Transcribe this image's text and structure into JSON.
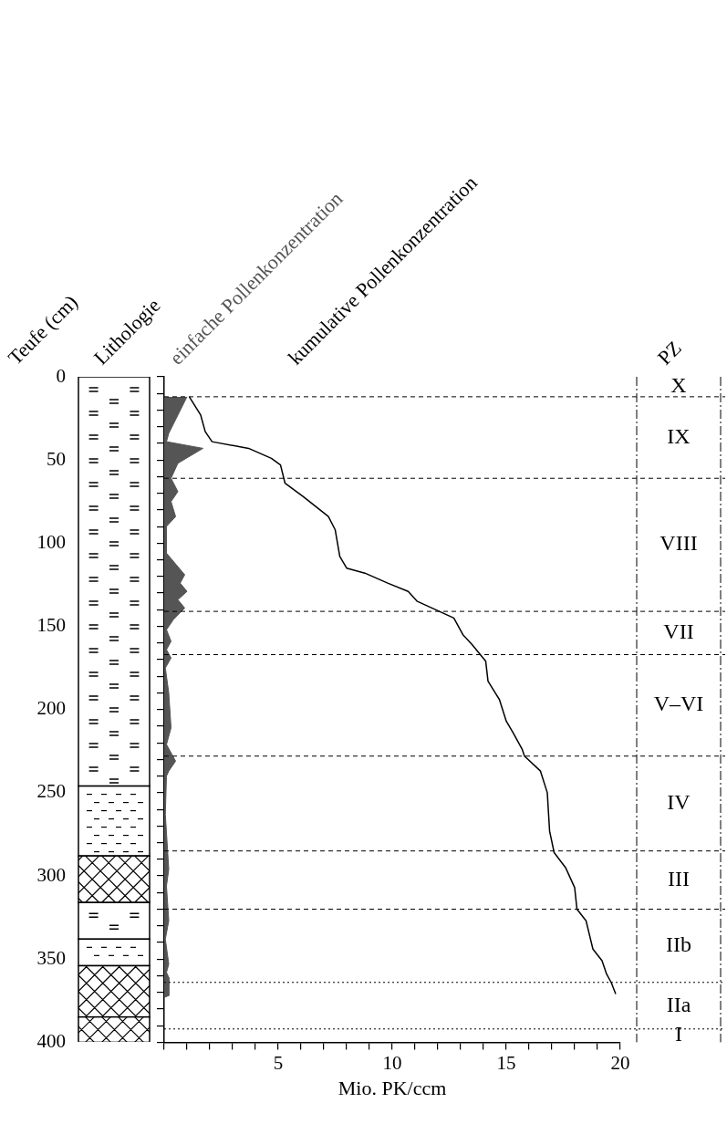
{
  "chart_data": {
    "type": "line",
    "ylabel": "Teufe (cm)",
    "xlabel": "Mio. PK/ccm",
    "annotations": [
      "Lithologie",
      "PZ",
      "X",
      "IX",
      "VIII",
      "VII",
      "V–VI",
      "IV",
      "III",
      "IIb",
      "IIa",
      "I"
    ],
    "xlim": [
      0,
      20
    ],
    "xticks": [
      {
        "value": 0,
        "label": null
      },
      {
        "value": 1,
        "label": null
      },
      {
        "value": 2,
        "label": null
      },
      {
        "value": 3,
        "label": null
      },
      {
        "value": 4,
        "label": null
      },
      5,
      {
        "value": 6,
        "label": null
      },
      {
        "value": 7,
        "label": null
      },
      {
        "value": 8,
        "label": null
      },
      {
        "value": 9,
        "label": null
      },
      10,
      {
        "value": 11,
        "label": null
      },
      {
        "value": 12,
        "label": null
      },
      {
        "value": 13,
        "label": null
      },
      {
        "value": 14,
        "label": null
      },
      15,
      {
        "value": 16,
        "label": null
      },
      {
        "value": 17,
        "label": null
      },
      {
        "value": 18,
        "label": null
      },
      {
        "value": 19,
        "label": null
      },
      20
    ],
    "ylim": [
      400,
      0
    ],
    "yticks": [
      0,
      {
        "value": 10,
        "label": null
      },
      {
        "value": 20,
        "label": null
      },
      {
        "value": 30,
        "label": null
      },
      {
        "value": 40,
        "label": null
      },
      50,
      {
        "value": 60,
        "label": null
      },
      {
        "value": 70,
        "label": null
      },
      {
        "value": 80,
        "label": null
      },
      {
        "value": 90,
        "label": null
      },
      100,
      {
        "value": 110,
        "label": null
      },
      {
        "value": 120,
        "label": null
      },
      {
        "value": 130,
        "label": null
      },
      {
        "value": 140,
        "label": null
      },
      150,
      {
        "value": 160,
        "label": null
      },
      {
        "value": 170,
        "label": null
      },
      {
        "value": 180,
        "label": null
      },
      {
        "value": 190,
        "label": null
      },
      200,
      {
        "value": 210,
        "label": null
      },
      {
        "value": 220,
        "label": null
      },
      {
        "value": 230,
        "label": null
      },
      {
        "value": 240,
        "label": null
      },
      250,
      {
        "value": 260,
        "label": null
      },
      {
        "value": 270,
        "label": null
      },
      {
        "value": 280,
        "label": null
      },
      {
        "value": 290,
        "label": null
      },
      300,
      {
        "value": 310,
        "label": null
      },
      {
        "value": 320,
        "label": null
      },
      {
        "value": 330,
        "label": null
      },
      {
        "value": 340,
        "label": null
      },
      350,
      {
        "value": 360,
        "label": null
      },
      {
        "value": 370,
        "label": null
      },
      {
        "value": 380,
        "label": null
      },
      {
        "value": 390,
        "label": null
      },
      400
    ],
    "grid": false,
    "legend": false,
    "marker": "none",
    "series": [
      {
        "name": "einfache Pollenkonzentration",
        "type": "area",
        "color": "#555555",
        "values": [
          12,
          23,
          34,
          39,
          43,
          52,
          61,
          69,
          75,
          84,
          90,
          106,
          119,
          124,
          129,
          134,
          139,
          146,
          152,
          159,
          164,
          169,
          175,
          190,
          211,
          221,
          231,
          237,
          240,
          263,
          296,
          306,
          327,
          338,
          353,
          358,
          361,
          372,
          373
        ],
        "x": [
          1.0,
          0.6,
          0.2,
          0.1,
          1.7,
          0.6,
          0.3,
          0.6,
          0.3,
          0.5,
          0.1,
          0.1,
          0.9,
          0.7,
          1.0,
          0.6,
          0.9,
          0.4,
          0.1,
          0.3,
          0.1,
          0.3,
          0.05,
          0.2,
          0.3,
          0.1,
          0.5,
          0.2,
          0.1,
          0.05,
          0.2,
          0.1,
          0.2,
          0.05,
          0.2,
          0.1,
          0.2,
          0.2,
          0
        ]
      },
      {
        "name": "kumulative Pollenkonzentration",
        "type": "line",
        "color": "#000000",
        "values": [
          12,
          23,
          33,
          39,
          43,
          49,
          53,
          64,
          72,
          84,
          92,
          108,
          115,
          118,
          124,
          129,
          135,
          145,
          155,
          161,
          171,
          183,
          194,
          207,
          214,
          224,
          228,
          237,
          250,
          273,
          286,
          295,
          307,
          320,
          327,
          344,
          351,
          359,
          364,
          371
        ],
        "x": [
          1.1,
          1.6,
          1.8,
          2.1,
          3.7,
          4.7,
          5.1,
          5.3,
          6.1,
          7.2,
          7.5,
          7.7,
          8.0,
          8.8,
          9.8,
          10.7,
          11.1,
          12.7,
          13.1,
          13.5,
          14.1,
          14.2,
          14.7,
          15.0,
          15.3,
          15.7,
          15.8,
          16.5,
          16.8,
          16.9,
          17.1,
          17.6,
          18.0,
          18.1,
          18.5,
          18.8,
          19.2,
          19.4,
          19.6,
          19.8
        ]
      }
    ],
    "ref_lines": [
      {
        "axis": "y",
        "value": 12,
        "line_style": "dashed"
      },
      {
        "axis": "y",
        "value": 61,
        "line_style": "dashed"
      },
      {
        "axis": "y",
        "value": 141,
        "line_style": "dashed"
      },
      {
        "axis": "y",
        "value": 167,
        "line_style": "dashed"
      },
      {
        "axis": "y",
        "value": 228,
        "line_style": "dashed"
      },
      {
        "axis": "y",
        "value": 285,
        "line_style": "dashed"
      },
      {
        "axis": "y",
        "value": 320,
        "line_style": "dashed"
      },
      {
        "axis": "y",
        "value": 364,
        "line_style": "dotted"
      },
      {
        "axis": "y",
        "value": 392,
        "line_style": "dotted"
      }
    ]
  }
}
